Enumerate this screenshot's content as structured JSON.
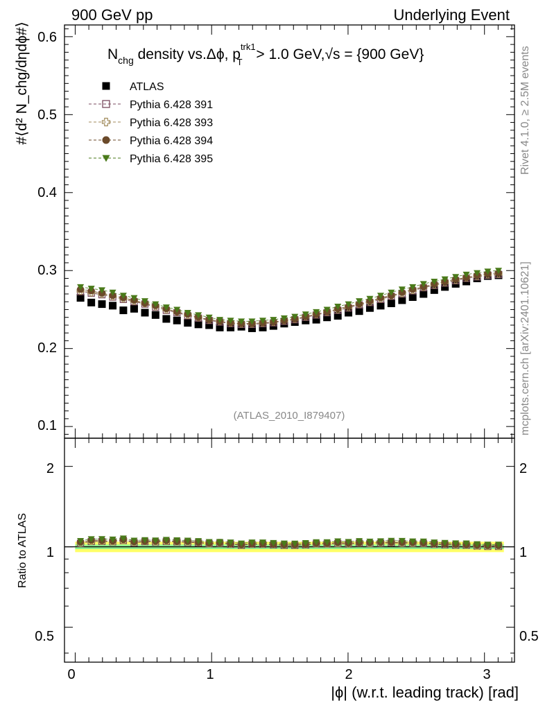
{
  "header": {
    "left": "900 GeV pp",
    "right": "Underlying Event"
  },
  "side_labels": {
    "rivet": "Rivet 4.1.0, ≥ 2.5M events",
    "mcplots": "mcplots.cern.ch [arXiv:2401.10621]"
  },
  "title": {
    "prefix": "N",
    "prefix_sub": "chg",
    "middle": " density vs.Δϕ, p",
    "pt_sup": "trk1",
    "pt_sub": "T",
    "suffix": " > 1.0 GeV,",
    "sqrt": "√s",
    "end": " = {900 GeV}"
  },
  "analysis_label": "(ATLAS_2010_I879407)",
  "axes": {
    "ylabel_main": "#⟨d² N_chg/dηdϕ#⟩",
    "ylabel_ratio": "Ratio to ATLAS",
    "xlabel": "|ϕ| (w.r.t. leading track) [rad]",
    "main_yticks": [
      "0.1",
      "0.2",
      "0.3",
      "0.4",
      "0.5",
      "0.6"
    ],
    "ratio_yticks": [
      "0.5",
      "1",
      "2"
    ],
    "xticks": [
      "0",
      "1",
      "2",
      "3"
    ]
  },
  "chart_data": {
    "type": "scatter",
    "title": "N_chg density vs. Δϕ, p_T^trk1 > 1.0 GeV, √s = {900 GeV}",
    "xlabel": "|ϕ| (w.r.t. leading track) [rad]",
    "ylabel": "#⟨d² N_chg/dηdϕ#⟩",
    "xlim": [
      -0.0785,
      3.22
    ],
    "ylim": [
      0.085,
      0.615
    ],
    "ratio_ylim": [
      0.37,
      2.55
    ],
    "ratio_yscale": "log",
    "legend_position": "top-left",
    "bin_width": 0.0785,
    "x": [
      0.039,
      0.118,
      0.196,
      0.275,
      0.353,
      0.432,
      0.511,
      0.589,
      0.668,
      0.746,
      0.825,
      0.903,
      0.982,
      1.06,
      1.139,
      1.218,
      1.296,
      1.375,
      1.453,
      1.532,
      1.61,
      1.689,
      1.767,
      1.846,
      1.925,
      2.003,
      2.082,
      2.16,
      2.239,
      2.317,
      2.396,
      2.474,
      2.553,
      2.632,
      2.71,
      2.789,
      2.867,
      2.946,
      3.024,
      3.103
    ],
    "series": [
      {
        "name": "ATLAS",
        "marker": "filled-square",
        "color": "#000000",
        "values": [
          0.265,
          0.259,
          0.257,
          0.255,
          0.249,
          0.251,
          0.246,
          0.243,
          0.238,
          0.236,
          0.233,
          0.231,
          0.23,
          0.227,
          0.227,
          0.228,
          0.226,
          0.227,
          0.229,
          0.232,
          0.234,
          0.236,
          0.237,
          0.24,
          0.242,
          0.246,
          0.248,
          0.252,
          0.255,
          0.258,
          0.262,
          0.266,
          0.27,
          0.275,
          0.279,
          0.283,
          0.286,
          0.29,
          0.293,
          0.294
        ]
      },
      {
        "name": "Pythia 6.428 391",
        "marker": "open-square",
        "color": "#7a4a5e",
        "values": [
          0.273,
          0.271,
          0.269,
          0.266,
          0.263,
          0.26,
          0.257,
          0.253,
          0.249,
          0.246,
          0.242,
          0.239,
          0.236,
          0.234,
          0.232,
          0.231,
          0.231,
          0.232,
          0.233,
          0.235,
          0.237,
          0.24,
          0.243,
          0.246,
          0.249,
          0.252,
          0.256,
          0.259,
          0.263,
          0.267,
          0.27,
          0.274,
          0.278,
          0.281,
          0.284,
          0.287,
          0.29,
          0.292,
          0.294,
          0.295
        ]
      },
      {
        "name": "Pythia 6.428 393",
        "marker": "open-cross",
        "color": "#a08a5a",
        "values": [
          0.274,
          0.272,
          0.27,
          0.267,
          0.264,
          0.261,
          0.258,
          0.254,
          0.25,
          0.247,
          0.243,
          0.24,
          0.237,
          0.235,
          0.233,
          0.232,
          0.232,
          0.233,
          0.234,
          0.236,
          0.238,
          0.241,
          0.244,
          0.247,
          0.25,
          0.253,
          0.257,
          0.26,
          0.264,
          0.268,
          0.271,
          0.275,
          0.279,
          0.282,
          0.285,
          0.288,
          0.291,
          0.293,
          0.295,
          0.296
        ]
      },
      {
        "name": "Pythia 6.428 394",
        "marker": "filled-circle",
        "color": "#6b4a2a",
        "values": [
          0.276,
          0.274,
          0.271,
          0.268,
          0.265,
          0.262,
          0.258,
          0.255,
          0.251,
          0.247,
          0.244,
          0.24,
          0.237,
          0.235,
          0.233,
          0.232,
          0.232,
          0.233,
          0.234,
          0.236,
          0.238,
          0.241,
          0.244,
          0.247,
          0.251,
          0.254,
          0.257,
          0.261,
          0.265,
          0.268,
          0.272,
          0.276,
          0.279,
          0.283,
          0.286,
          0.289,
          0.291,
          0.294,
          0.296,
          0.297
        ]
      },
      {
        "name": "Pythia 6.428 395",
        "marker": "filled-triangle-down",
        "color": "#4a7a1a",
        "values": [
          0.279,
          0.277,
          0.275,
          0.272,
          0.268,
          0.265,
          0.261,
          0.257,
          0.253,
          0.25,
          0.246,
          0.243,
          0.24,
          0.237,
          0.236,
          0.235,
          0.235,
          0.236,
          0.237,
          0.239,
          0.241,
          0.244,
          0.247,
          0.25,
          0.254,
          0.257,
          0.261,
          0.264,
          0.268,
          0.272,
          0.276,
          0.279,
          0.283,
          0.286,
          0.289,
          0.292,
          0.295,
          0.297,
          0.299,
          0.3
        ]
      }
    ],
    "ratio_bands": {
      "inner_color": "#90ee90",
      "outer_color": "#ffff66",
      "inner_halfwidth": 0.02,
      "outer_halfwidth": 0.045
    }
  }
}
